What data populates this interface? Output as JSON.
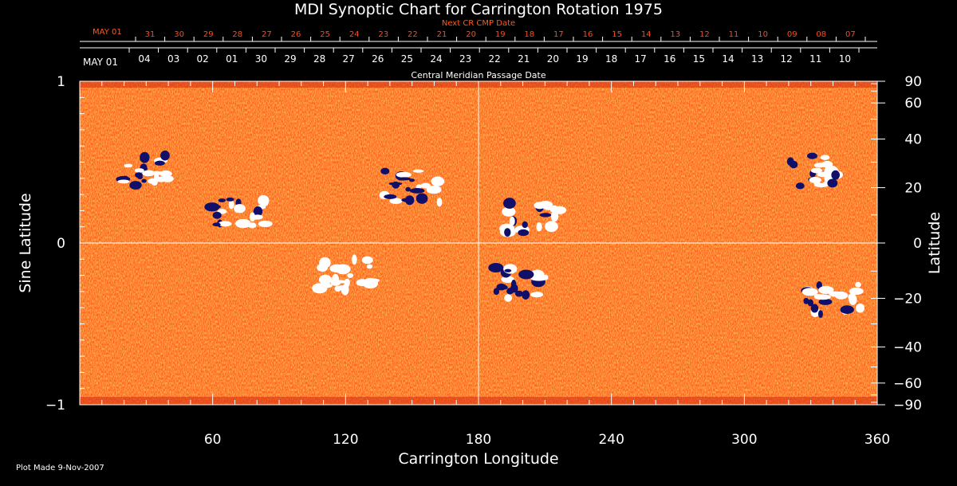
{
  "chart_data": {
    "type": "heatmap",
    "title": "MDI Synoptic Chart for Carrington Rotation 1975",
    "xlabel": "Carrington Longitude",
    "ylabel_left": "Sine Latitude",
    "ylabel_right": "Latitude",
    "xlim": [
      0,
      360
    ],
    "ylim": [
      -1,
      1
    ],
    "x_ticks": [
      "60",
      "120",
      "180",
      "240",
      "300",
      "360"
    ],
    "x_tick_values": [
      60,
      120,
      180,
      240,
      300,
      360
    ],
    "y_ticks_left": [
      "1",
      "0",
      "−1"
    ],
    "y_tick_values_left": [
      1,
      0,
      -1
    ],
    "y_ticks_right": [
      "90",
      "60",
      "40",
      "20",
      "0",
      "−20",
      "−40",
      "−60",
      "−90"
    ],
    "y_tick_values_right": [
      90,
      60,
      40,
      20,
      0,
      -20,
      -40,
      -60,
      -90
    ],
    "cmp_axis_label": "Central Meridian Passage Date",
    "cmp_start_label": "MAY 01",
    "cmp_dates": [
      "04",
      "03",
      "02",
      "01",
      "30",
      "29",
      "28",
      "27",
      "26",
      "25",
      "24",
      "23",
      "22",
      "21",
      "20",
      "19",
      "18",
      "17",
      "16",
      "15",
      "14",
      "13",
      "12",
      "11",
      "10"
    ],
    "next_cr_label": "Next CR CMP Date",
    "next_cr_start_label": "MAY 01",
    "next_cr_dates": [
      "31",
      "30",
      "29",
      "28",
      "27",
      "26",
      "25",
      "24",
      "23",
      "22",
      "21",
      "20",
      "19",
      "18",
      "17",
      "16",
      "15",
      "14",
      "13",
      "12",
      "11",
      "10",
      "09",
      "08",
      "07"
    ],
    "background_color": "#ff5a1a",
    "positive_polarity_color": "#ffffff",
    "negative_polarity_color": "#10106a",
    "label_color": "#ff4a1a",
    "grid": "crosshair at longitude 180 and sine latitude 0",
    "active_regions": [
      {
        "lon": 30,
        "sinlat": 0.45,
        "polarity": "mixed"
      },
      {
        "lon": 72,
        "sinlat": 0.2,
        "polarity": "mixed"
      },
      {
        "lon": 150,
        "sinlat": 0.35,
        "polarity": "mixed"
      },
      {
        "lon": 205,
        "sinlat": 0.15,
        "polarity": "mixed"
      },
      {
        "lon": 330,
        "sinlat": 0.45,
        "polarity": "mixed"
      },
      {
        "lon": 198,
        "sinlat": -0.25,
        "polarity": "mixed"
      },
      {
        "lon": 120,
        "sinlat": -0.2,
        "polarity": "positive"
      },
      {
        "lon": 340,
        "sinlat": -0.35,
        "polarity": "mixed"
      }
    ]
  },
  "footer": {
    "plot_made": "Plot Made  9-Nov-2007"
  }
}
